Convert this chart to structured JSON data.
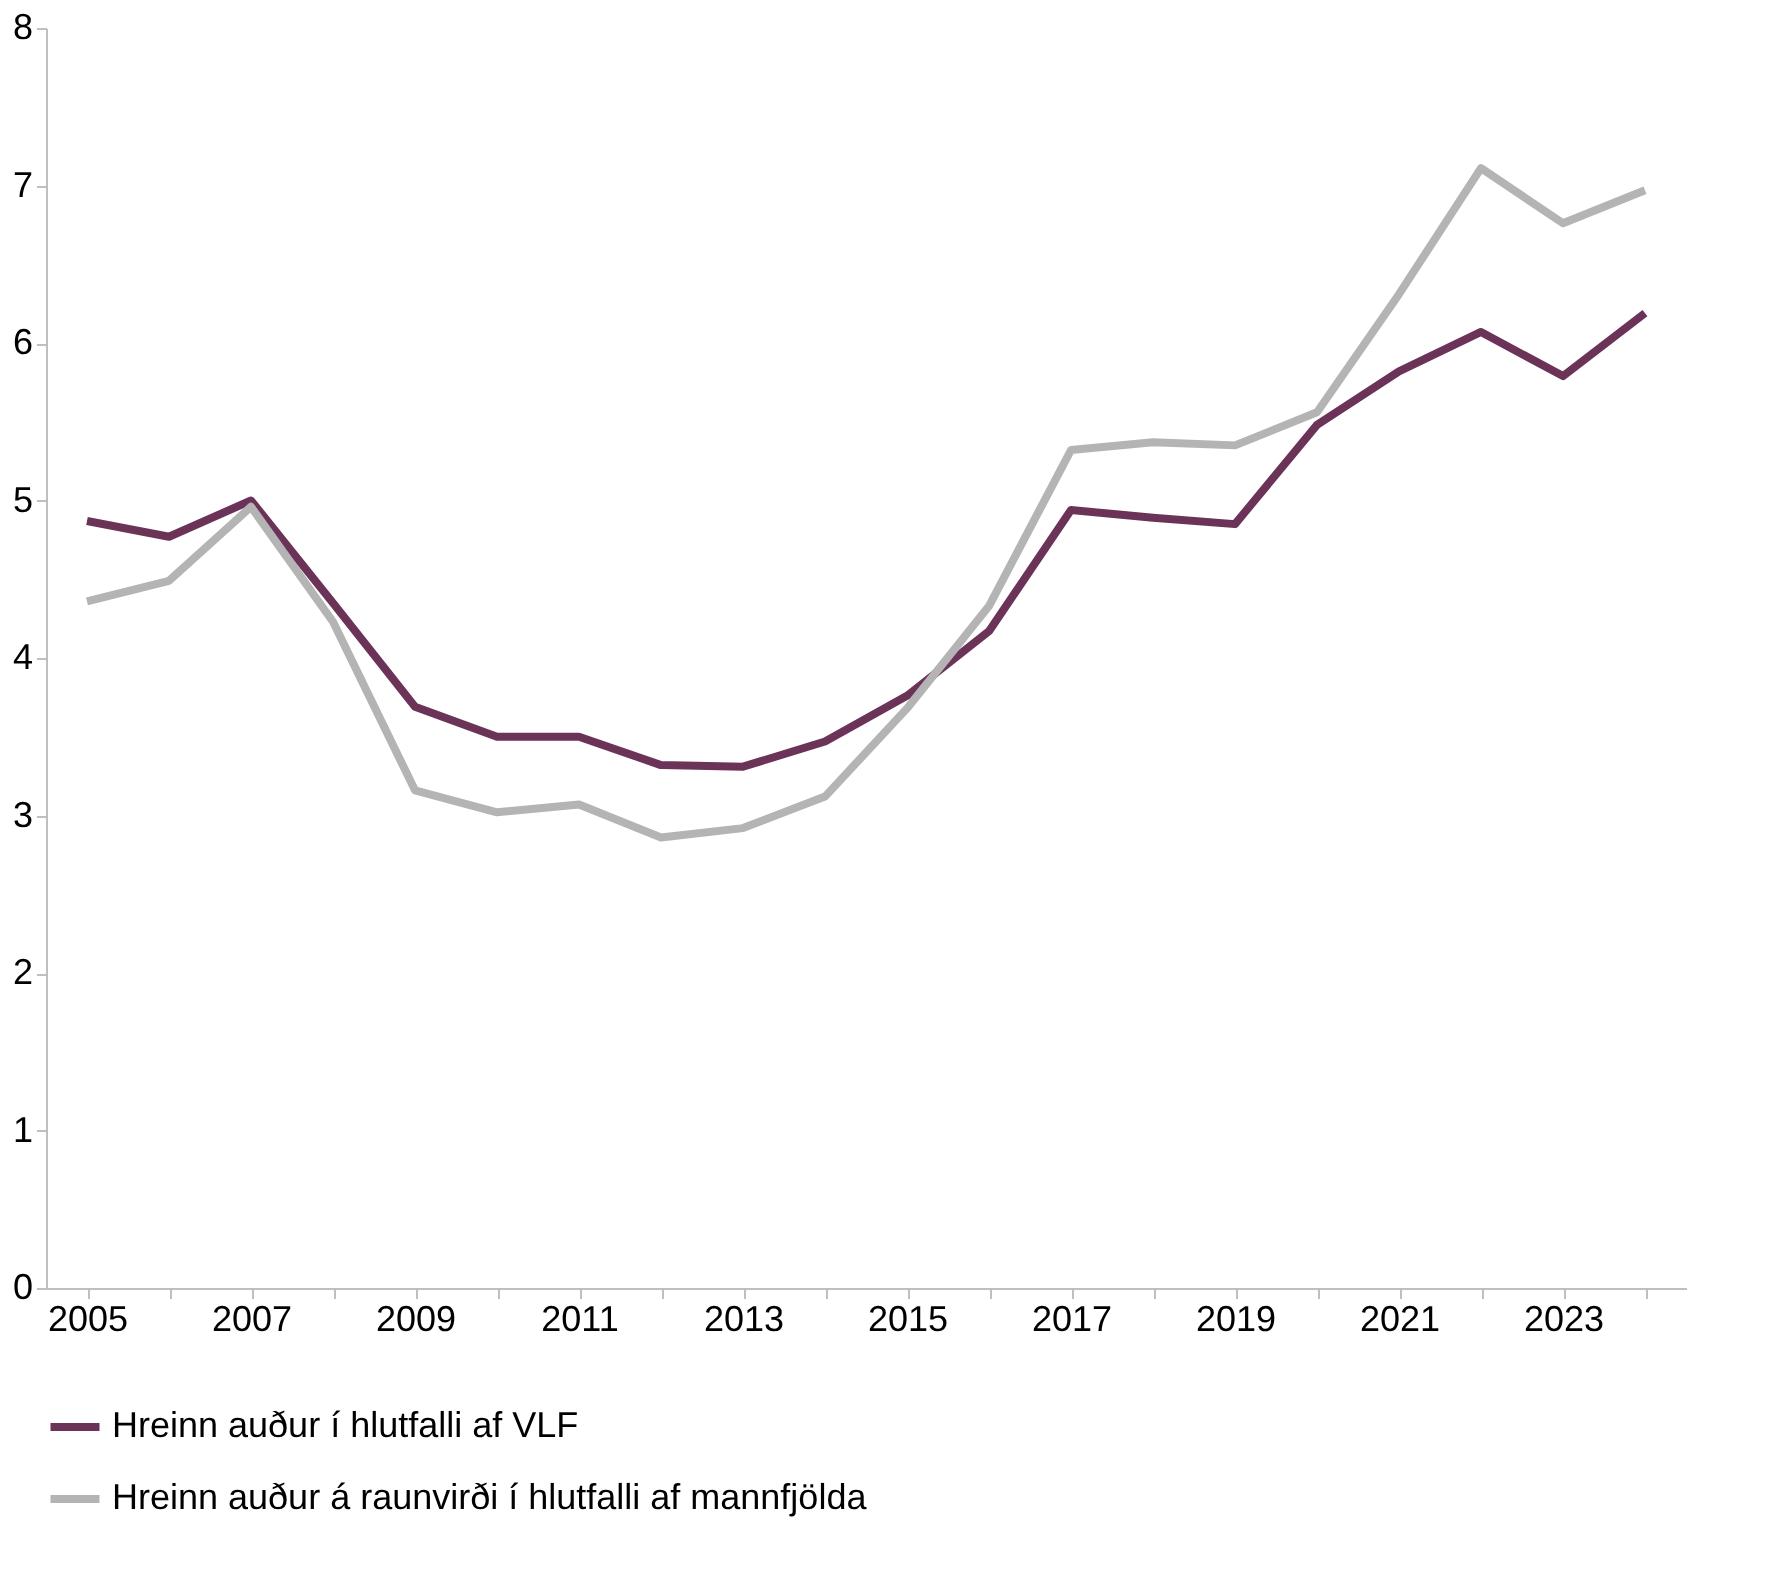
{
  "chart_data": {
    "type": "line",
    "categories": [
      "2005",
      null,
      "2007",
      null,
      "2009",
      null,
      "2011",
      null,
      "2013",
      null,
      "2015",
      null,
      "2017",
      null,
      "2019",
      null,
      "2021",
      null,
      "2023",
      null
    ],
    "series": [
      {
        "name": "Hreinn auður í hlutfalli af VLF",
        "color": "#6b3358",
        "values": [
          4.87,
          4.77,
          5.0,
          4.35,
          3.69,
          3.5,
          3.5,
          3.32,
          3.31,
          3.47,
          3.76,
          4.17,
          4.94,
          4.89,
          4.85,
          5.48,
          5.82,
          6.07,
          5.79,
          6.19
        ]
      },
      {
        "name": "Hreinn auður á raunvirði í hlutfalli af mannfjölda",
        "color": "#b4b4b4",
        "values": [
          4.36,
          4.49,
          4.96,
          4.23,
          3.16,
          3.02,
          3.07,
          2.86,
          2.92,
          3.12,
          3.68,
          4.33,
          5.32,
          5.37,
          5.35,
          5.56,
          6.31,
          7.11,
          6.76,
          6.97
        ]
      }
    ],
    "ylim": [
      0,
      8
    ],
    "yticks": [
      0,
      1,
      2,
      3,
      4,
      5,
      6,
      7,
      8
    ],
    "grid": false,
    "legend": "bottom",
    "marker": "none",
    "line_style": "solid"
  }
}
